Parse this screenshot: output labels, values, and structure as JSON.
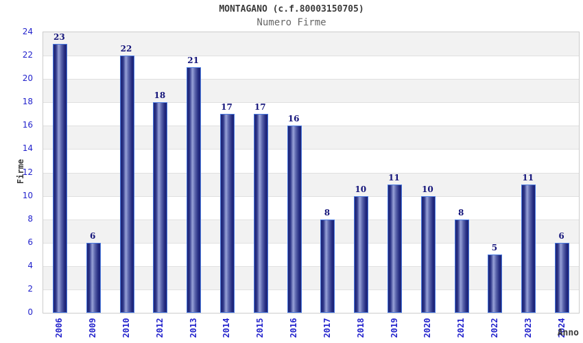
{
  "chart_data": {
    "type": "bar",
    "title": "MONTAGANO (c.f.80003150705)",
    "subtitle": "Numero Firme",
    "xlabel": "Anno",
    "ylabel": "Firme",
    "categories": [
      "2006",
      "2009",
      "2010",
      "2012",
      "2013",
      "2014",
      "2015",
      "2016",
      "2017",
      "2018",
      "2019",
      "2020",
      "2021",
      "2022",
      "2023",
      "2024"
    ],
    "values": [
      23,
      6,
      22,
      18,
      21,
      17,
      17,
      16,
      8,
      10,
      11,
      10,
      8,
      5,
      11,
      6
    ],
    "ylim": [
      0,
      24
    ],
    "ytick_step": 2,
    "grid": true,
    "legend_position": "none",
    "colors": {
      "axis_tick_label": "#2222cc",
      "bar_value_label": "#14147a",
      "title": "#3a3a3a",
      "subtitle": "#666666",
      "band_gray": "#f2f2f2",
      "band_white": "#ffffff",
      "grid_line": "#e0e0e0",
      "plot_border": "#cccccc",
      "bar_border": "#4a7ae0",
      "bar_dark": "#1d2375",
      "bar_highlight": "#98a2d8"
    }
  }
}
